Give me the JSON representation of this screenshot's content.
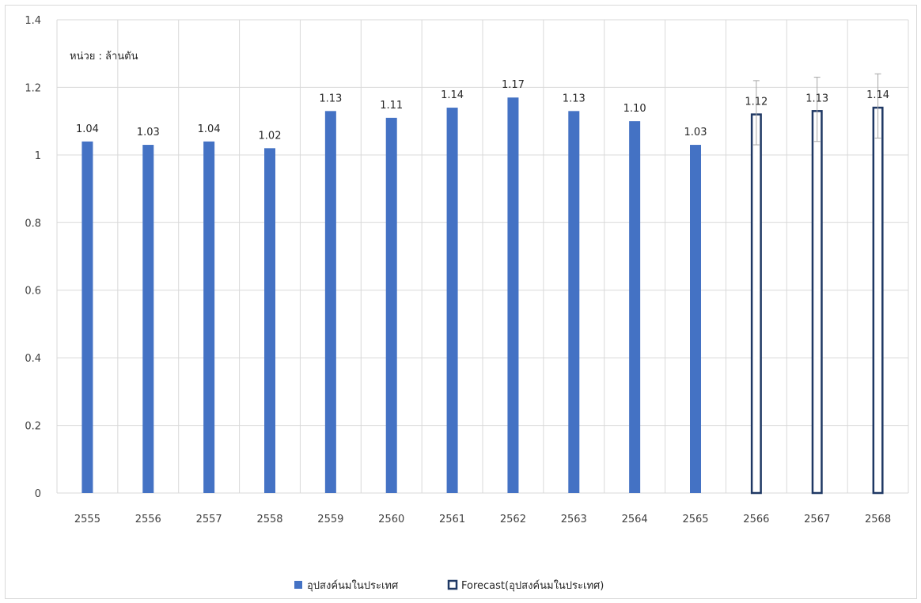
{
  "chart_data": {
    "type": "bar",
    "title": "",
    "unit_label": "หน่วย : ล้านตัน",
    "xlabel": "",
    "ylabel": "",
    "ylim": [
      0,
      1.4
    ],
    "yticks": [
      "0",
      "0.2",
      "0.4",
      "0.6",
      "0.8",
      "1",
      "1.2",
      "1.4"
    ],
    "grid": true,
    "legend_position": "bottom",
    "categories": [
      "2555",
      "2556",
      "2557",
      "2558",
      "2559",
      "2560",
      "2561",
      "2562",
      "2563",
      "2564",
      "2565",
      "2566",
      "2567",
      "2568"
    ],
    "series": [
      {
        "name": "อุปสงค์นมในประเทศ",
        "style": "filled",
        "color": "#4472c4",
        "values": [
          1.04,
          1.03,
          1.04,
          1.02,
          1.13,
          1.11,
          1.14,
          1.17,
          1.13,
          1.1,
          1.03,
          null,
          null,
          null
        ],
        "labels": [
          "1.04",
          "1.03",
          "1.04",
          "1.02",
          "1.13",
          "1.11",
          "1.14",
          "1.17",
          "1.13",
          "1.10",
          "1.03",
          "",
          "",
          ""
        ]
      },
      {
        "name": "Forecast(อุปสงค์นมในประเทศ)",
        "style": "outline",
        "color": "#1f3864",
        "values": [
          null,
          null,
          null,
          null,
          null,
          null,
          null,
          null,
          null,
          null,
          null,
          1.12,
          1.13,
          1.14
        ],
        "labels": [
          "",
          "",
          "",
          "",
          "",
          "",
          "",
          "",
          "",
          "",
          "",
          "1.12",
          "1.13",
          "1.14"
        ],
        "error_range": [
          null,
          null,
          null,
          null,
          null,
          null,
          null,
          null,
          null,
          null,
          null,
          [
            1.03,
            1.22
          ],
          [
            1.04,
            1.23
          ],
          [
            1.05,
            1.24
          ]
        ],
        "error_color": "#a6a6a6"
      }
    ]
  }
}
